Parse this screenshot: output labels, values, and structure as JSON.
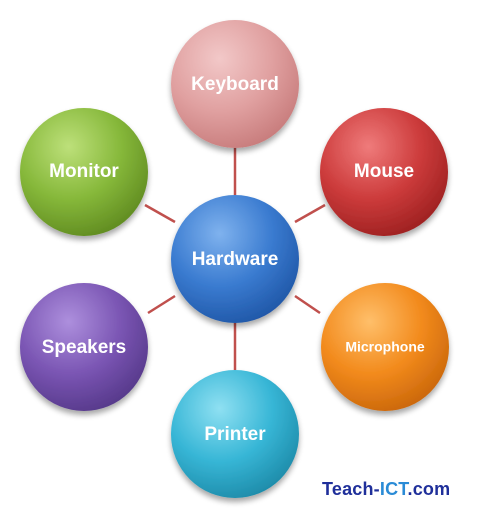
{
  "diagram": {
    "center": {
      "label": "Hardware",
      "color": "#3a7bd0"
    },
    "nodes": [
      {
        "label": "Keyboard",
        "color": "#e0a0a0"
      },
      {
        "label": "Mouse",
        "color": "#cc3b3b"
      },
      {
        "label": "Microphone",
        "color": "#f28a1c"
      },
      {
        "label": "Printer",
        "color": "#37b6d6"
      },
      {
        "label": "Speakers",
        "color": "#7a55b3"
      },
      {
        "label": "Monitor",
        "color": "#86b83a"
      }
    ],
    "connector_color": "#c0504d"
  },
  "watermark": {
    "part1": "Teach-",
    "part2": "ICT",
    "part3": ".com"
  }
}
